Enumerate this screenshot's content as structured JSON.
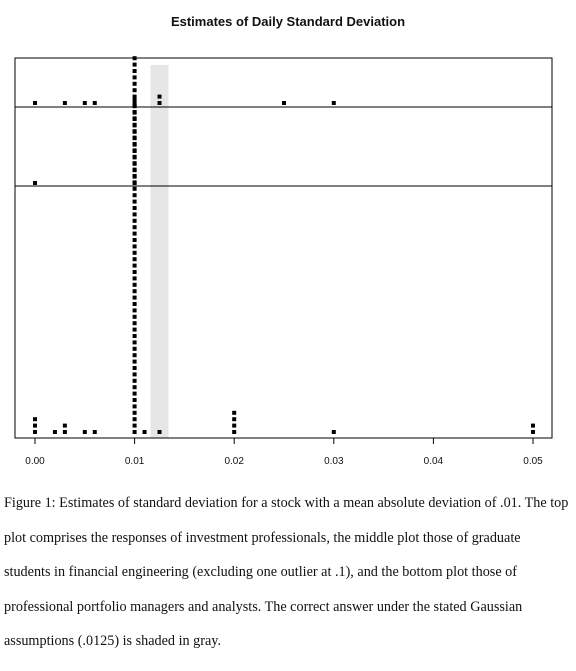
{
  "chart_data": {
    "type": "dot",
    "title": "Estimates of Daily Standard Deviation",
    "xlabel": "",
    "ylabel": "",
    "xlim": [
      0.0,
      0.05
    ],
    "xticks": [
      "0.00",
      "0.01",
      "0.02",
      "0.03",
      "0.04",
      "0.05"
    ],
    "xtick_values": [
      0.0,
      0.01,
      0.02,
      0.03,
      0.04,
      0.05
    ],
    "shaded_value": 0.0125,
    "shaded_color": "#e6e6e6",
    "dot_color": "#000000",
    "panels": [
      {
        "name": "",
        "counts": [
          {
            "x": 0.0,
            "n": 1
          },
          {
            "x": 0.003,
            "n": 1
          },
          {
            "x": 0.005,
            "n": 1
          },
          {
            "x": 0.006,
            "n": 1
          },
          {
            "x": 0.01,
            "n": 8
          },
          {
            "x": 0.0125,
            "n": 2
          },
          {
            "x": 0.025,
            "n": 1
          },
          {
            "x": 0.03,
            "n": 1
          }
        ]
      },
      {
        "name": "",
        "counts": [
          {
            "x": 0.0,
            "n": 1
          },
          {
            "x": 0.01,
            "n": 14
          }
        ]
      },
      {
        "name": "",
        "counts": [
          {
            "x": 0.0,
            "n": 3
          },
          {
            "x": 0.002,
            "n": 1
          },
          {
            "x": 0.003,
            "n": 2
          },
          {
            "x": 0.005,
            "n": 1
          },
          {
            "x": 0.006,
            "n": 1
          },
          {
            "x": 0.01,
            "n": 52
          },
          {
            "x": 0.011,
            "n": 1
          },
          {
            "x": 0.0125,
            "n": 1
          },
          {
            "x": 0.02,
            "n": 4
          },
          {
            "x": 0.03,
            "n": 1
          },
          {
            "x": 0.05,
            "n": 2
          }
        ]
      }
    ]
  },
  "caption": "Figure 1: Estimates of standard deviation for a stock with a mean absolute deviation of .01. The top plot comprises the responses of investment professionals, the middle plot those of graduate students in financial engineering (excluding one outlier at .1), and the bottom plot those of professional portfolio managers and analysts. The correct answer under the stated Gaussian assumptions (.0125) is shaded in gray."
}
